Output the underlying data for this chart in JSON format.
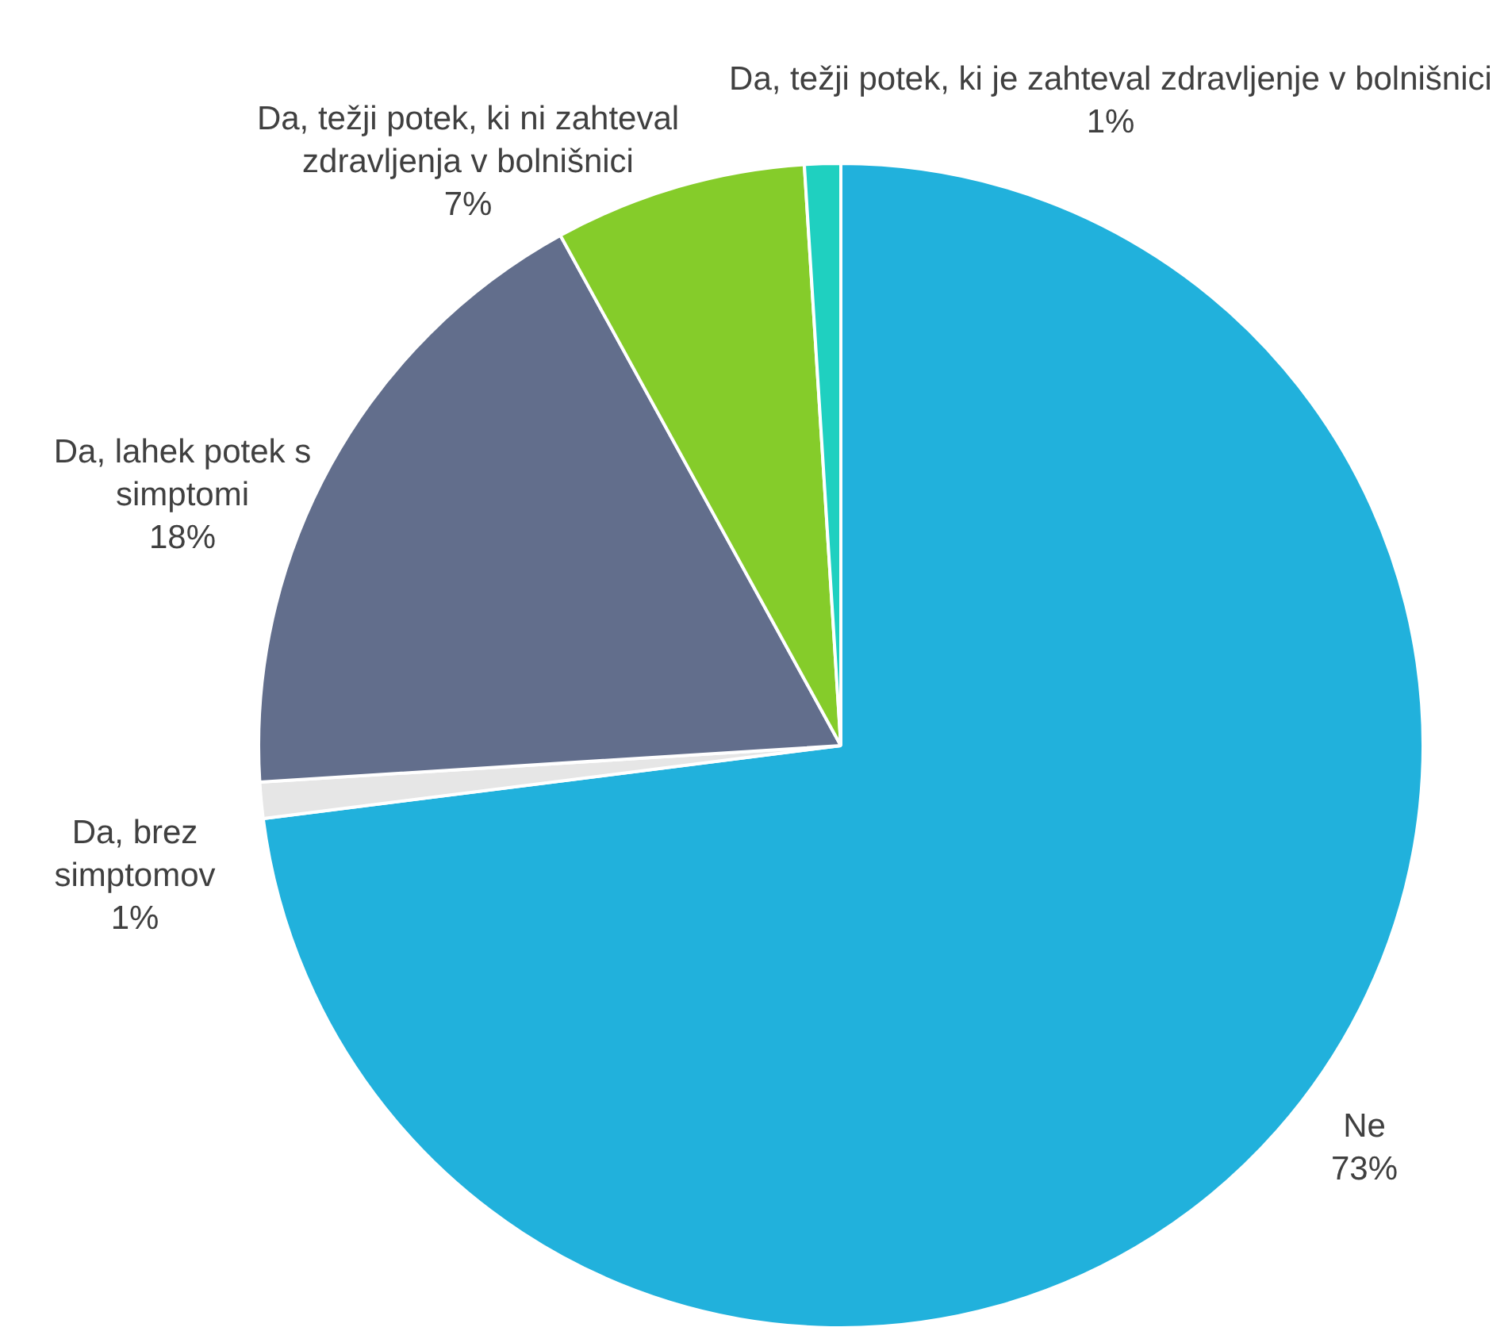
{
  "chart_data": {
    "type": "pie",
    "categories": [
      "Ne",
      "Da, brez simptomov",
      "Da, lahek potek s simptomi",
      "Da, težji potek, ki ni zahteval zdravljenja v bolnišnici",
      "Da, težji potek, ki je zahteval zdravljenje v bolnišnici"
    ],
    "values": [
      73,
      1,
      18,
      7,
      1
    ],
    "value_labels": [
      "73%",
      "1%",
      "18%",
      "7%",
      "1%"
    ],
    "colors": [
      "#21b1dc",
      "#e6e6e6",
      "#626e8c",
      "#85cc2a",
      "#1fd0c0"
    ],
    "legend": false
  }
}
